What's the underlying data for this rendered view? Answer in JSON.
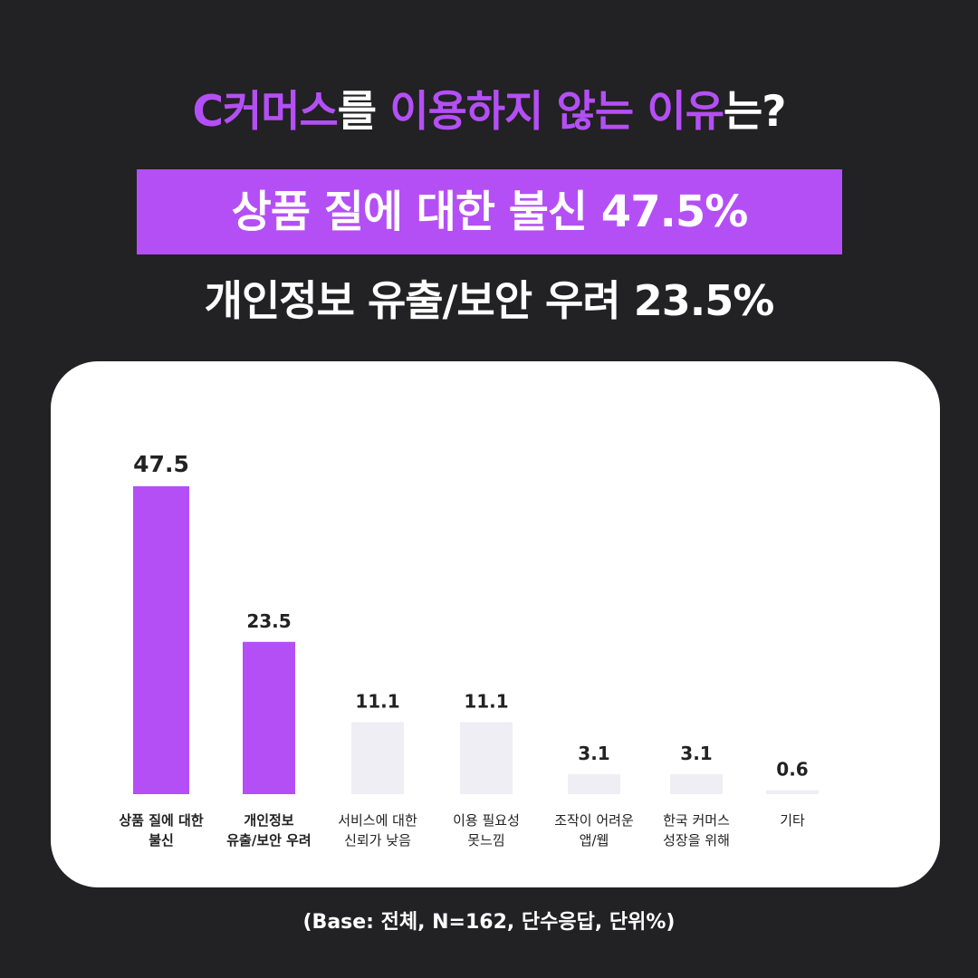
{
  "header": {
    "title_parts": [
      {
        "text": "C커머스",
        "highlight": true
      },
      {
        "text": "를 ",
        "highlight": false
      },
      {
        "text": "이용하지 않는 이유",
        "highlight": true
      },
      {
        "text": "는?",
        "highlight": false
      }
    ],
    "headline": "상품 질에 대한 불신 47.5%",
    "subline": "개인정보 유출/보안 우려 23.5%"
  },
  "colors": {
    "background": "#222123",
    "accent": "#b44ff6",
    "bar_muted": "#efeef4",
    "card": "#ffffff",
    "text_dark": "#222222"
  },
  "chart_data": {
    "type": "bar",
    "categories": [
      [
        "상품 질에 대한",
        "불신"
      ],
      [
        "개인정보",
        "유출/보안 우려"
      ],
      [
        "서비스에 대한",
        "신뢰가 낮음"
      ],
      [
        "이용 필요성",
        "못느낌"
      ],
      [
        "조작이 어려운",
        "앱/웹"
      ],
      [
        "한국 커머스",
        "성장을 위해"
      ],
      [
        "기타"
      ]
    ],
    "values": [
      47.5,
      23.5,
      11.1,
      11.1,
      3.1,
      3.1,
      0.6
    ],
    "value_labels": [
      "47.5",
      "23.5",
      "11.1",
      "11.1",
      "3.1",
      "3.1",
      "0.6"
    ],
    "highlighted": [
      true,
      true,
      false,
      false,
      false,
      false,
      false
    ],
    "grid": false,
    "legend": "none",
    "unit": "%"
  },
  "footnote": "(Base: 전체, N=162, 단수응답, 단위%)"
}
